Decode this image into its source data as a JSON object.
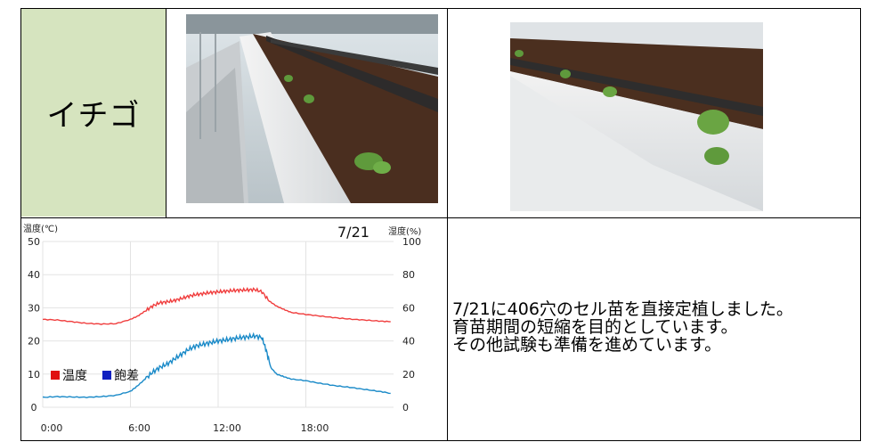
{
  "table": {
    "crop_label": "イチゴ"
  },
  "note": {
    "lines": [
      "7/21に406穴のセル苗を直接定植しました。",
      "育苗期間の短縮を目的としています。",
      "その他試験も準備を進めています。"
    ]
  },
  "photos": [
    {
      "name": "strawberry-seedlings-photo-1",
      "alt": "greenhouse bed with strawberry seedlings"
    },
    {
      "name": "strawberry-seedlings-photo-2",
      "alt": "close-up of strawberry seedlings in white bed"
    }
  ],
  "chart_data": {
    "type": "line",
    "title": "7/21",
    "ylabel_left": "温度(℃)",
    "ylabel_right": "湿度(%)",
    "ylim_left": [
      0,
      50
    ],
    "ylim_right": [
      0,
      100
    ],
    "yticks_left": [
      "0",
      "10",
      "20",
      "30",
      "40",
      "50"
    ],
    "yticks_right": [
      "0",
      "20",
      "40",
      "60",
      "80",
      "100"
    ],
    "xticks": [
      "0:00",
      "6:00",
      "12:00",
      "18:00"
    ],
    "grid": true,
    "legend_placement": "lower-left",
    "series": [
      {
        "name": "温度",
        "color": "#f03e3e",
        "axis": "left",
        "x": [
          0,
          1,
          2,
          3,
          4,
          5,
          6,
          6.5,
          7,
          7.5,
          8,
          8.5,
          9,
          9.5,
          10,
          10.5,
          11,
          11.5,
          12,
          12.5,
          13,
          13.5,
          14,
          14.5,
          15,
          15.5,
          16,
          16.5,
          17,
          18,
          19,
          20,
          21,
          22,
          23,
          23.8
        ],
        "values": [
          26.5,
          26.3,
          25.8,
          25.3,
          25.1,
          25.2,
          26.5,
          27.5,
          29,
          30.5,
          31.5,
          31.8,
          32.2,
          32.8,
          33.5,
          34,
          34.3,
          34.6,
          34.8,
          35,
          35.2,
          35.3,
          35.4,
          35.5,
          34.8,
          32,
          30.5,
          29.5,
          28.6,
          28,
          27.5,
          27,
          26.6,
          26.3,
          26,
          25.8
        ]
      },
      {
        "name": "飽差",
        "color": "#1a8ac8",
        "axis": "left",
        "x": [
          0,
          1,
          2,
          3,
          4,
          5,
          6,
          6.5,
          7,
          7.5,
          8,
          8.5,
          9,
          9.5,
          10,
          10.5,
          11,
          11.5,
          12,
          12.5,
          13,
          13.5,
          14,
          14.5,
          15,
          15.3,
          15.6,
          16,
          16.5,
          17,
          18,
          19,
          20,
          21,
          22,
          23,
          23.8
        ],
        "values": [
          3,
          3.2,
          3.1,
          3,
          3.2,
          3.6,
          4.8,
          6.5,
          8.5,
          10.5,
          12,
          13,
          14.5,
          16,
          17.5,
          18.5,
          19,
          19.5,
          20,
          20.3,
          20.6,
          21,
          21.2,
          21.5,
          21,
          17,
          12,
          10,
          9.2,
          8.5,
          8,
          7.2,
          6.5,
          6,
          5.4,
          4.8,
          4.2
        ]
      }
    ]
  }
}
